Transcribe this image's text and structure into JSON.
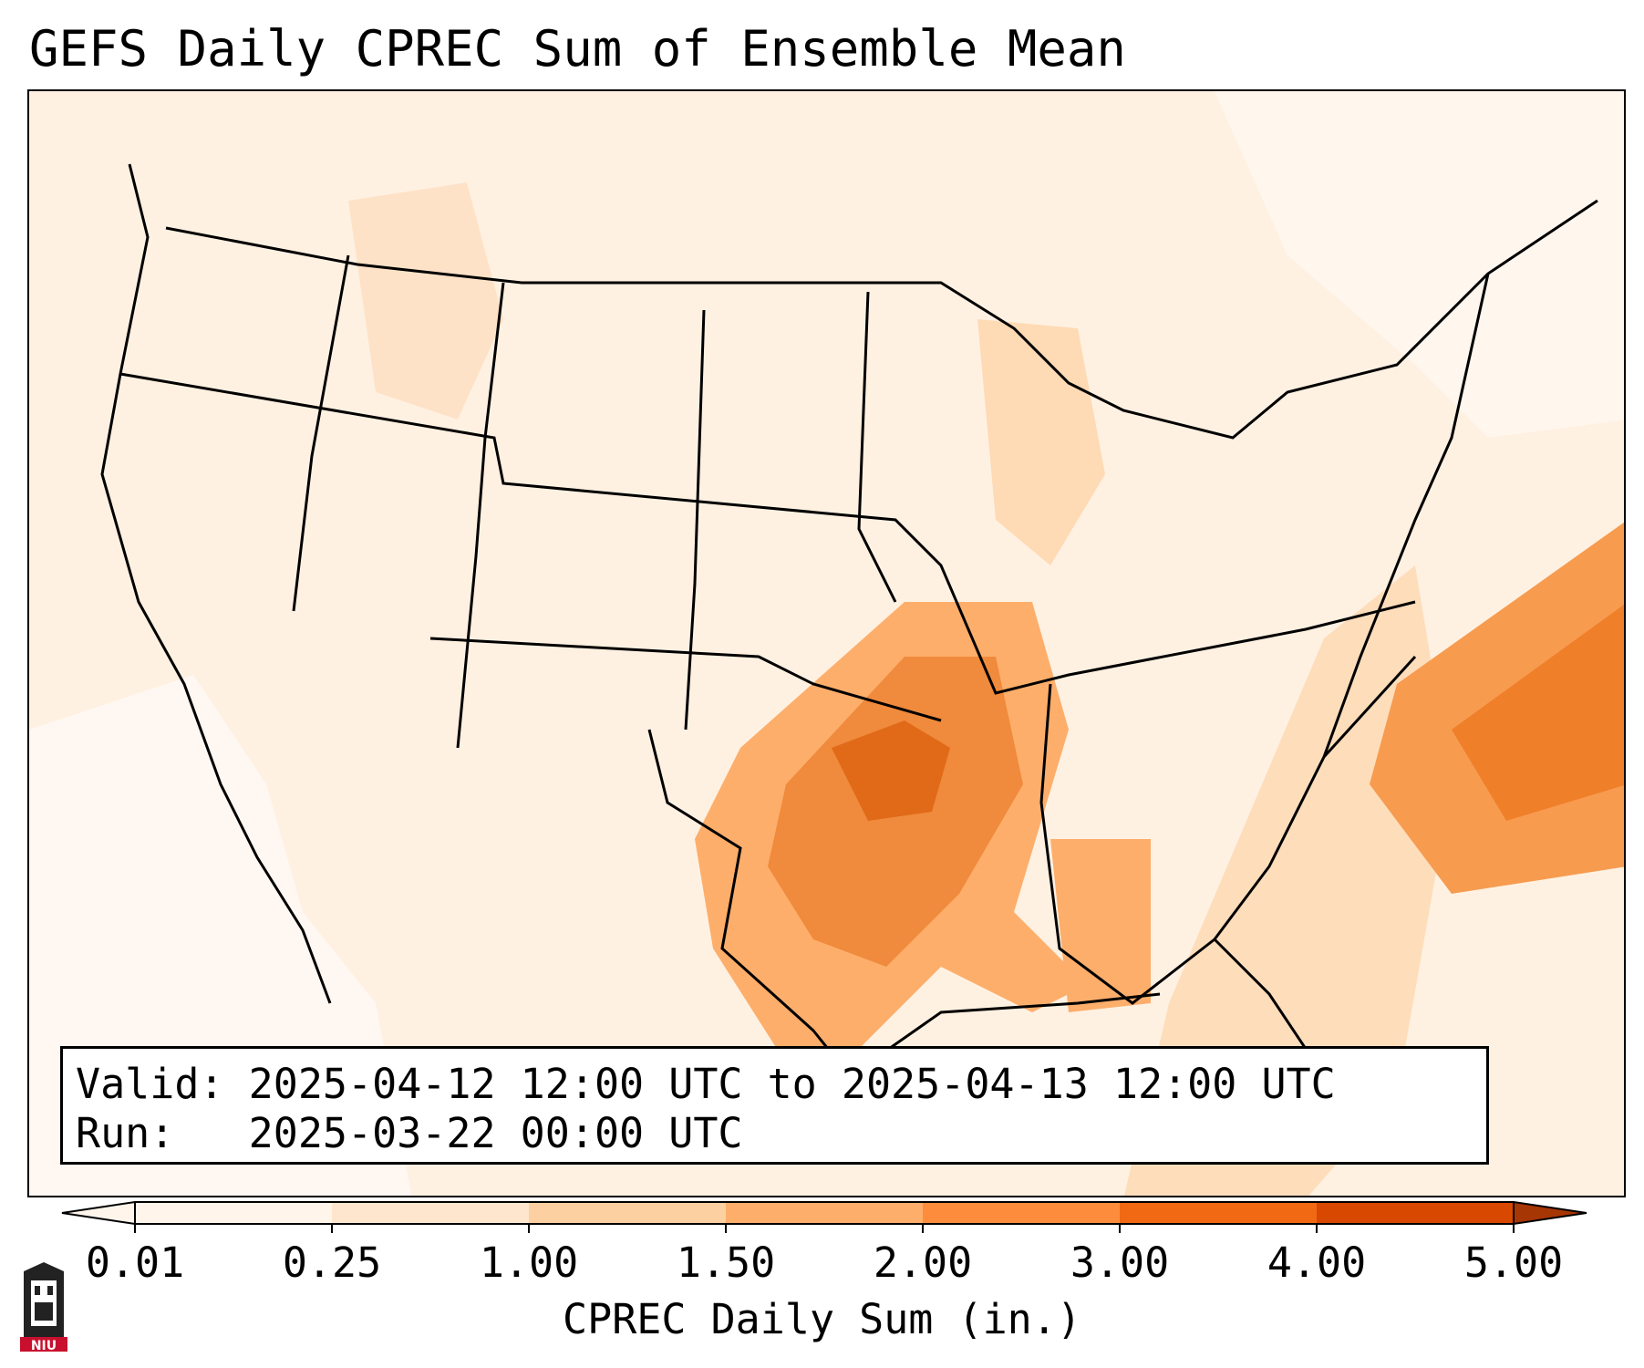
{
  "title": "GEFS Daily CPREC Sum of Ensemble Mean",
  "info": {
    "valid_label": "Valid:",
    "valid_value": "2025-04-12 12:00 UTC to 2025-04-13 12:00 UTC",
    "run_label": "Run:",
    "run_value": "2025-03-22 00:00 UTC"
  },
  "colorbar": {
    "label": "CPREC Daily Sum (in.)",
    "ticks": [
      "0.01",
      "0.25",
      "1.00",
      "1.50",
      "2.00",
      "3.00",
      "4.00",
      "5.00"
    ],
    "colors": [
      "#fff5eb",
      "#fee6ce",
      "#fdd0a2",
      "#fdae6b",
      "#fd8d3c",
      "#f16913",
      "#d94801",
      "#a63603"
    ]
  },
  "logo": {
    "text": "NIU",
    "color": "#c8102e"
  }
}
